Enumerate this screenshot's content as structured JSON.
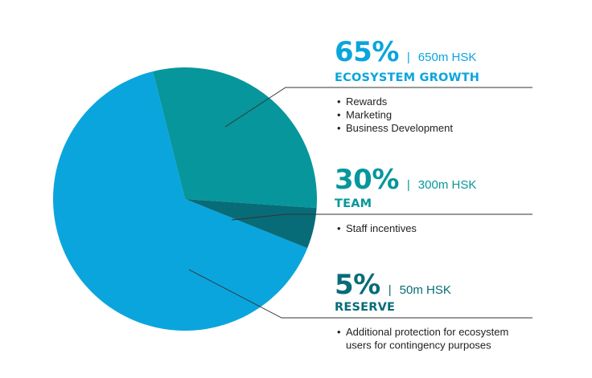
{
  "chart_data": {
    "type": "pie",
    "slices": [
      {
        "key": "ecosystem",
        "percent_label": "65%",
        "amount_label": "650m HSK",
        "category": "ECOSYSTEM GROWTH",
        "value": 65,
        "color": "#0aa5dd",
        "bullets": [
          "Rewards",
          "Marketing",
          "Business Development"
        ]
      },
      {
        "key": "team",
        "percent_label": "30%",
        "amount_label": "300m HSK",
        "category": "TEAM",
        "value": 30,
        "color": "#07969c",
        "bullets": [
          "Staff incentives"
        ]
      },
      {
        "key": "reserve",
        "percent_label": "5%",
        "amount_label": "50m HSK",
        "category": "RESERVE",
        "value": 5,
        "color": "#076c78",
        "bullets": [
          "Additional protection for ecosystem",
          "users for contingency purposes"
        ]
      }
    ],
    "separator": "|",
    "bullet_symbol": "•",
    "text_colors": {
      "ecosystem": "#0aa5dd",
      "team": "#07969c",
      "reserve": "#076c78"
    },
    "leader_line_color": "#333333",
    "rule_color": "#555555"
  }
}
